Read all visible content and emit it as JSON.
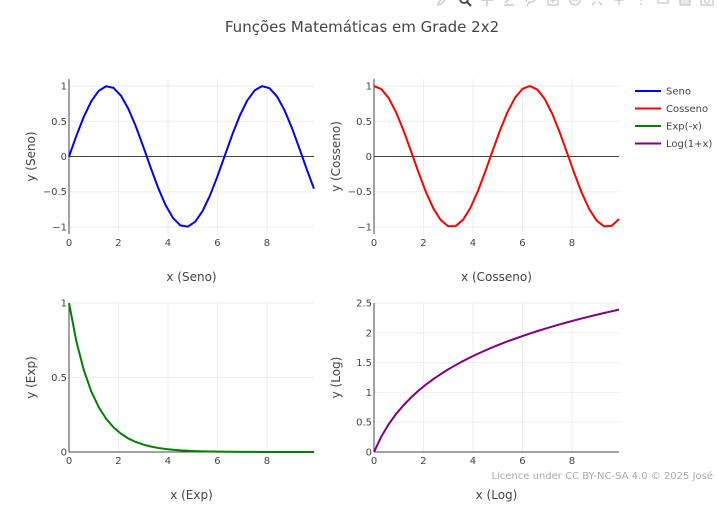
{
  "title": "Funções Matemáticas em Grade 2x2",
  "license": "Licence under CC BY-NC-SA 4.0 © 2025 José",
  "legend": {
    "placement": "right",
    "items": [
      {
        "label": "Seno",
        "color": "#0000ff"
      },
      {
        "label": "Cosseno",
        "color": "#ff0000"
      },
      {
        "label": "Exp(-x)",
        "color": "#008000"
      },
      {
        "label": "Log(1+x)",
        "color": "#800080"
      }
    ]
  },
  "modebar": {
    "icons": [
      "pencil-icon",
      "zoom-icon",
      "pan-icon",
      "select-box-icon",
      "lasso-icon",
      "zoom-in-icon",
      "zoom-out-icon",
      "autoscale-icon",
      "reset-axes-icon",
      "spike-icon",
      "hover-closest-icon",
      "hover-compare-icon",
      "camera-icon"
    ]
  },
  "chart_data": [
    {
      "type": "line",
      "name": "Seno",
      "function": "sin(x)",
      "color": "#0000ff",
      "x_range_data": [
        0,
        9.9
      ],
      "x_step": 0.3,
      "xlabel": "x (Seno)",
      "ylabel": "y (Seno)",
      "xlim": [
        0,
        9.9
      ],
      "ylim": [
        -1.1,
        1.1
      ],
      "xticks": [
        0,
        2,
        4,
        6,
        8
      ],
      "xtick_labels": [
        "0",
        "2",
        "4",
        "6",
        "8"
      ],
      "yticks": [
        -1,
        -0.5,
        0,
        0.5,
        1
      ],
      "ytick_labels": [
        "−1",
        "−0.5",
        "0",
        "0.5",
        "1"
      ],
      "zeroline": true,
      "grid": true
    },
    {
      "type": "line",
      "name": "Cosseno",
      "function": "cos(x)",
      "color": "#ff0000",
      "x_range_data": [
        0,
        9.9
      ],
      "x_step": 0.3,
      "xlabel": "x (Cosseno)",
      "ylabel": "y (Cosseno)",
      "xlim": [
        0,
        9.9
      ],
      "ylim": [
        -1.1,
        1.1
      ],
      "xticks": [
        0,
        2,
        4,
        6,
        8
      ],
      "xtick_labels": [
        "0",
        "2",
        "4",
        "6",
        "8"
      ],
      "yticks": [
        -1,
        -0.5,
        0,
        0.5,
        1
      ],
      "ytick_labels": [
        "−1",
        "−0.5",
        "0",
        "0.5",
        "1"
      ],
      "zeroline": true,
      "grid": true
    },
    {
      "type": "line",
      "name": "Exp(-x)",
      "function": "exp(-x)",
      "color": "#008000",
      "x_range_data": [
        0,
        9.9
      ],
      "x_step": 0.3,
      "xlabel": "x (Exp)",
      "ylabel": "y (Exp)",
      "xlim": [
        0,
        9.9
      ],
      "ylim": [
        0,
        1.0
      ],
      "xticks": [
        0,
        2,
        4,
        6,
        8
      ],
      "xtick_labels": [
        "0",
        "2",
        "4",
        "6",
        "8"
      ],
      "yticks": [
        0,
        0.5,
        1
      ],
      "ytick_labels": [
        "0",
        "0.5",
        "1"
      ],
      "zeroline": true,
      "grid": true
    },
    {
      "type": "line",
      "name": "Log(1+x)",
      "function": "log(1+x)",
      "color": "#800080",
      "x_range_data": [
        0,
        9.9
      ],
      "x_step": 0.3,
      "xlabel": "x (Log)",
      "ylabel": "y (Log)",
      "xlim": [
        0,
        9.9
      ],
      "ylim": [
        0,
        2.5
      ],
      "xticks": [
        0,
        2,
        4,
        6,
        8
      ],
      "xtick_labels": [
        "0",
        "2",
        "4",
        "6",
        "8"
      ],
      "yticks": [
        0,
        0.5,
        1,
        1.5,
        2,
        2.5
      ],
      "ytick_labels": [
        "0",
        "0.5",
        "1",
        "1.5",
        "2",
        "2.5"
      ],
      "zeroline": true,
      "grid": true
    }
  ]
}
